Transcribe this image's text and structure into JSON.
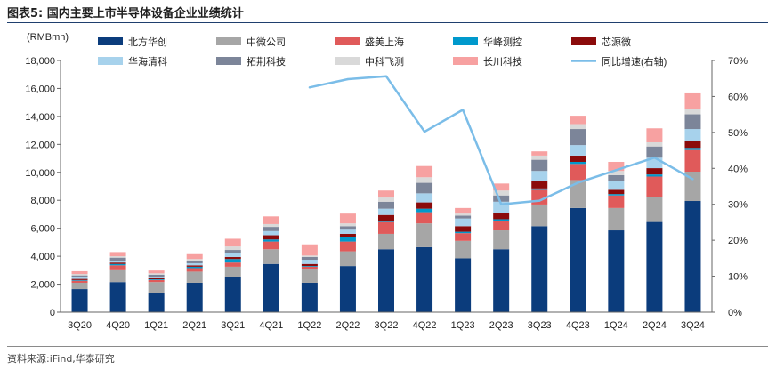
{
  "header": {
    "title": "图表5:  国内主要上市半导体设备企业业绩统计"
  },
  "footer": {
    "source": "资料来源:iFind,华泰研究"
  },
  "colors": {
    "北方华创": "#0b3c7c",
    "中微公司": "#a6a6a6",
    "盛美上海": "#e05a5a",
    "华峰测控": "#0099cc",
    "芯源微": "#8b0b0b",
    "华海清科": "#a7d2ec",
    "拓荆科技": "#7c8599",
    "中科飞测": "#d9d9d9",
    "长川科技": "#f7a1a1",
    "同比增速(右轴)": "#7bbde8"
  },
  "chart_data": {
    "type": "bar",
    "stacked": true,
    "title": "国内主要上市半导体设备企业业绩统计",
    "ylabel": "(RMBmn)",
    "y2label": "%",
    "ylim": [
      0,
      18000
    ],
    "y2lim": [
      0,
      70
    ],
    "yticks": [
      "0",
      "2,000",
      "4,000",
      "6,000",
      "8,000",
      "10,000",
      "12,000",
      "14,000",
      "16,000",
      "18,000"
    ],
    "y2ticks": [
      "0%",
      "10%",
      "20%",
      "30%",
      "40%",
      "50%",
      "60%",
      "70%"
    ],
    "grid": false,
    "legend_position": "top",
    "categories": [
      "3Q20",
      "4Q20",
      "1Q21",
      "2Q21",
      "3Q21",
      "4Q21",
      "1Q22",
      "2Q22",
      "3Q22",
      "4Q22",
      "1Q23",
      "2Q23",
      "3Q23",
      "4Q23",
      "1Q24",
      "2Q24",
      "3Q24"
    ],
    "series": [
      {
        "name": "北方华创",
        "values": [
          1650,
          2150,
          1400,
          2100,
          2500,
          3450,
          2100,
          3300,
          4500,
          4650,
          3850,
          4500,
          6150,
          7450,
          5850,
          6450,
          7950
        ]
      },
      {
        "name": "中微公司",
        "values": [
          450,
          850,
          750,
          800,
          750,
          1050,
          950,
          1050,
          1100,
          1700,
          1250,
          1350,
          1550,
          2000,
          1600,
          1800,
          2100
        ]
      },
      {
        "name": "盛美上海",
        "values": [
          150,
          350,
          150,
          250,
          300,
          550,
          200,
          700,
          850,
          800,
          550,
          650,
          1050,
          1150,
          900,
          1450,
          1550
        ]
      },
      {
        "name": "华峰测控",
        "values": [
          50,
          100,
          50,
          100,
          250,
          150,
          50,
          300,
          100,
          250,
          100,
          150,
          100,
          150,
          100,
          150,
          150
        ]
      },
      {
        "name": "芯源微",
        "values": [
          80,
          100,
          80,
          100,
          150,
          300,
          150,
          250,
          400,
          450,
          400,
          450,
          550,
          450,
          300,
          450,
          500
        ]
      },
      {
        "name": "华海清科",
        "values": [
          100,
          100,
          100,
          150,
          250,
          300,
          300,
          300,
          450,
          650,
          550,
          800,
          700,
          750,
          650,
          750,
          850
        ]
      },
      {
        "name": "拓荆科技",
        "values": [
          150,
          250,
          150,
          150,
          250,
          300,
          200,
          250,
          500,
          750,
          200,
          450,
          800,
          1150,
          400,
          800,
          1050
        ]
      },
      {
        "name": "中科飞测",
        "values": [
          100,
          100,
          100,
          150,
          250,
          200,
          100,
          200,
          300,
          400,
          150,
          350,
          300,
          350,
          300,
          300,
          400
        ]
      },
      {
        "name": "长川科技",
        "values": [
          200,
          300,
          200,
          350,
          550,
          550,
          800,
          700,
          500,
          800,
          400,
          500,
          300,
          600,
          650,
          1000,
          1100
        ]
      }
    ],
    "line": {
      "name": "同比增速(右轴)",
      "axis": "right",
      "categories": [
        "1Q22",
        "2Q22",
        "3Q22",
        "4Q22",
        "1Q23",
        "2Q23",
        "3Q23",
        "4Q23",
        "1Q24",
        "2Q24",
        "3Q24"
      ],
      "values": [
        62.5,
        64.8,
        65.6,
        50.2,
        56.3,
        30.0,
        31.0,
        36.0,
        39.5,
        43.0,
        37.0
      ]
    }
  }
}
